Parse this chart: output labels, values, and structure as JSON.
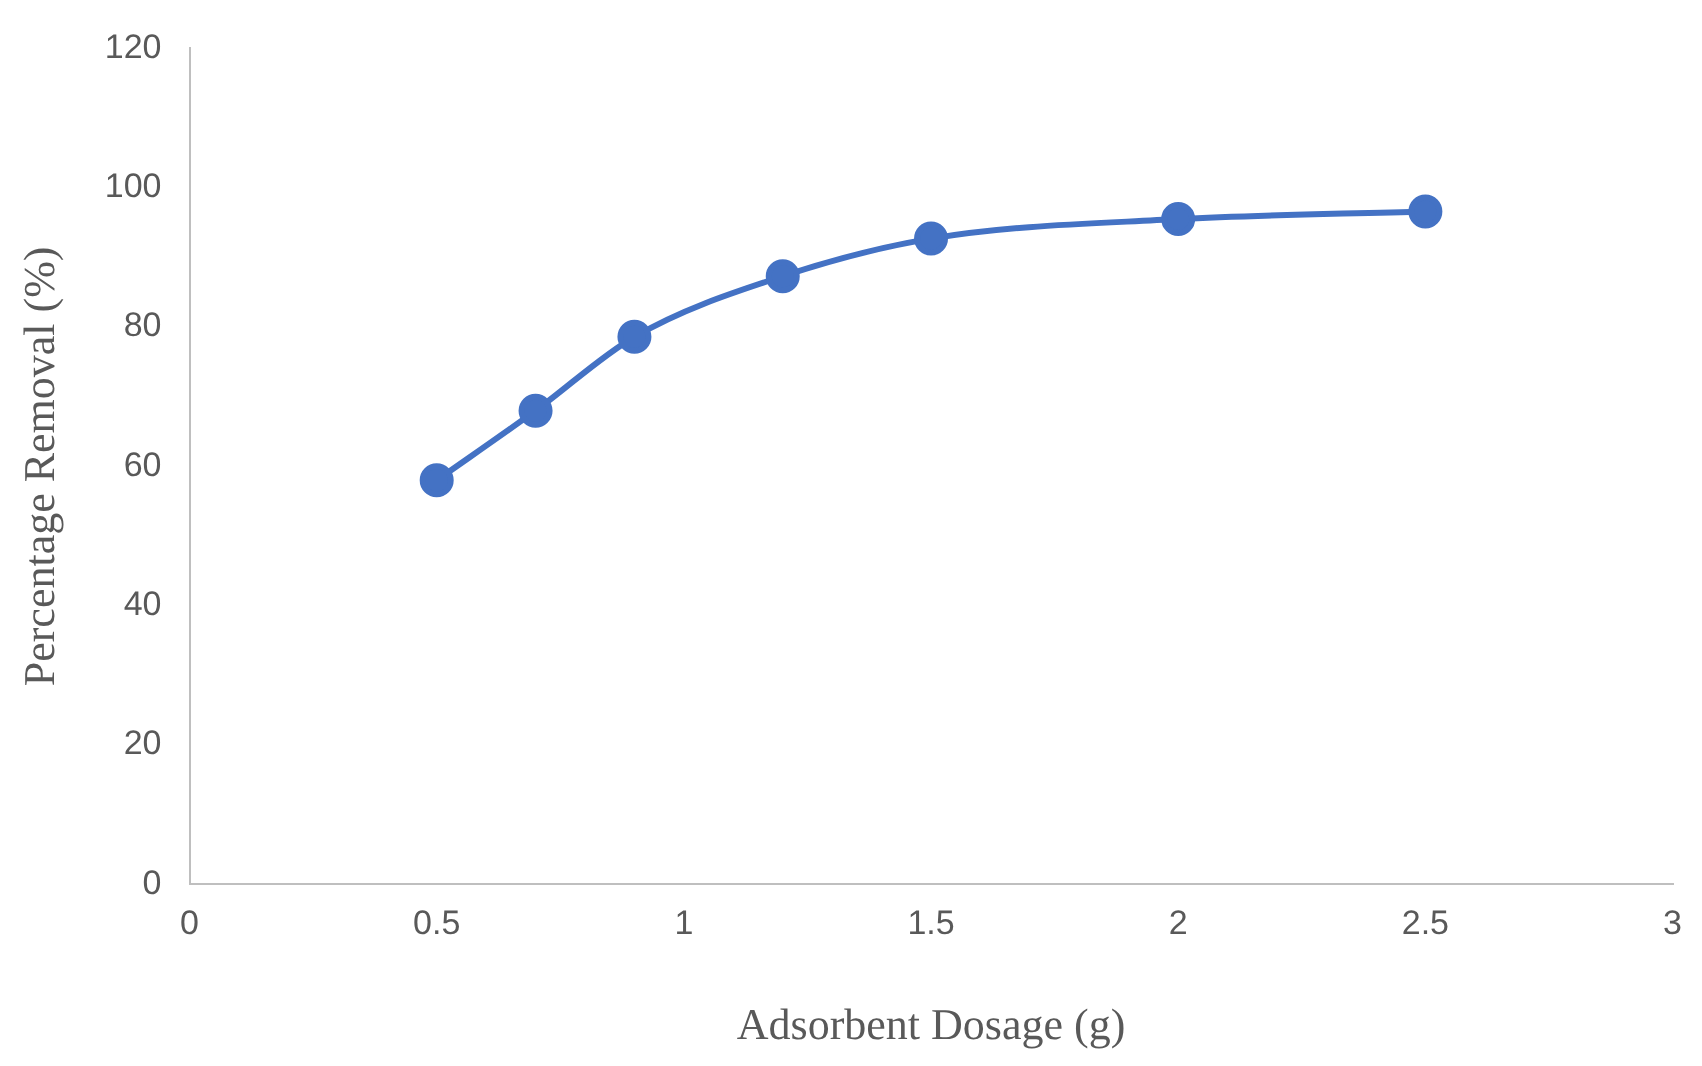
{
  "chart_data": {
    "type": "line",
    "xlabel": "Adsorbent Dosage (g)",
    "ylabel": "Percentage Removal (%)",
    "x": [
      0.5,
      0.7,
      0.9,
      1.2,
      1.5,
      2,
      2.5
    ],
    "series": [
      {
        "color": "#4472c4",
        "values": [
          58,
          68,
          78.6,
          87.3,
          92.7,
          95.5,
          96.6
        ]
      }
    ],
    "xlim": [
      0,
      3
    ],
    "xticks": [
      0,
      0.5,
      1,
      1.5,
      2,
      2.5,
      3
    ],
    "ylim": [
      0,
      120
    ],
    "yticks": [
      0,
      20,
      40,
      60,
      80,
      100,
      120
    ],
    "grid": false,
    "legend": false,
    "marker": "circle",
    "line_style": "solid"
  }
}
